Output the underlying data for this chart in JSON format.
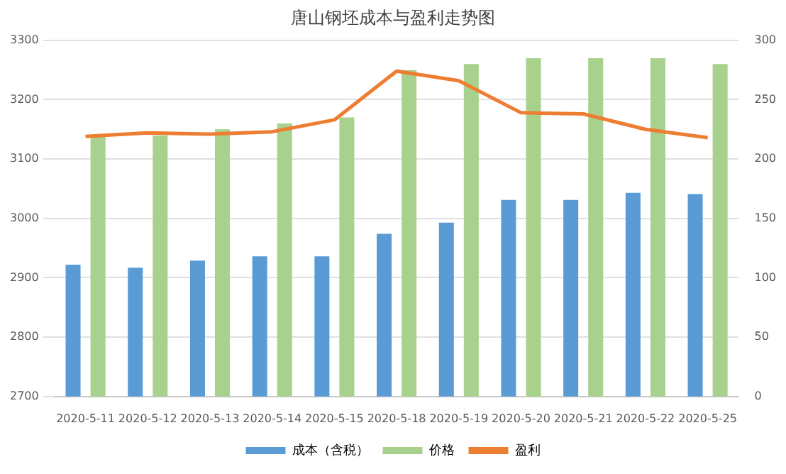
{
  "chart_data": {
    "type": "bar",
    "title": "唐山钢坯成本与盈利走势图",
    "categories": [
      "2020-5-11",
      "2020-5-12",
      "2020-5-13",
      "2020-5-14",
      "2020-5-15",
      "2020-5-18",
      "2020-5-19",
      "2020-5-20",
      "2020-5-21",
      "2020-5-22",
      "2020-5-25"
    ],
    "series": [
      {
        "name": "成本（含税）",
        "color": "#5b9bd5",
        "values": [
          2922,
          2917,
          2929,
          2936,
          2936,
          2974,
          2993,
          3031,
          3031,
          3043,
          3041
        ]
      },
      {
        "name": "价格",
        "color": "#a9d18e",
        "values": [
          3140,
          3140,
          3150,
          3160,
          3170,
          3250,
          3260,
          3270,
          3270,
          3270,
          3260
        ]
      },
      {
        "name": "盈利",
        "type": "line",
        "axis": "y2",
        "color": "#ed7d31",
        "marker": "none",
        "values": [
          219,
          222,
          221,
          223,
          233,
          274,
          266,
          239,
          238,
          225,
          218
        ]
      }
    ],
    "ylim": [
      2700,
      3300
    ],
    "yticks": [
      2700,
      2800,
      2900,
      3000,
      3100,
      3200,
      3300
    ],
    "y2lim": [
      0,
      300
    ],
    "y2ticks": [
      0,
      50,
      100,
      150,
      200,
      250,
      300
    ],
    "grid": "y",
    "legend": "bottom"
  }
}
